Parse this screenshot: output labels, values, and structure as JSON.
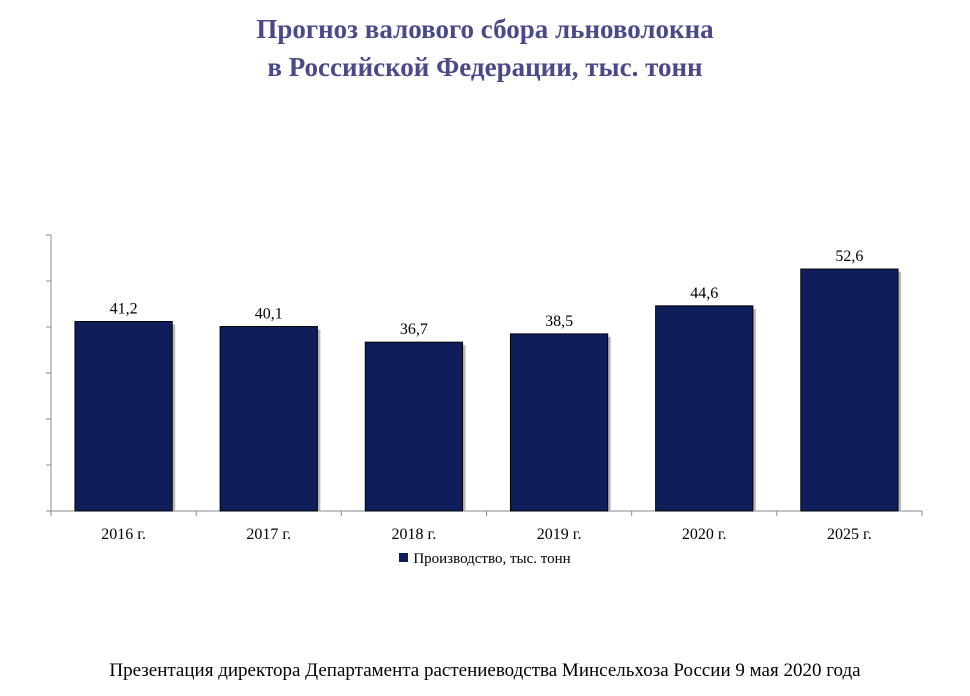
{
  "title": {
    "line1": "Прогноз валового сбора льноволокна",
    "line2": "в Российской Федерации, тыс. тонн"
  },
  "chart_data": {
    "type": "bar",
    "categories": [
      "2016 г.",
      "2017 г.",
      "2018 г.",
      "2019 г.",
      "2020 г.",
      "2025 г."
    ],
    "series": [
      {
        "name": "Производство, тыс. тонн",
        "values": [
          41.2,
          40.1,
          36.7,
          38.5,
          44.6,
          52.6
        ],
        "labels": [
          "41,2",
          "40,1",
          "36,7",
          "38,5",
          "44,6",
          "52,6"
        ],
        "color": "#0f1e5a"
      }
    ],
    "ylim": [
      0,
      60
    ],
    "y_tick_step": 10,
    "y_tick_labels_shown": false,
    "grid": false,
    "legend_position": "bottom"
  },
  "legend": {
    "label": "Производство, тыс. тонн",
    "color": "#0f1e5a"
  },
  "footer": "Презентация директора Департамента растениеводства Минсельхоза России 9 мая 2020 года"
}
